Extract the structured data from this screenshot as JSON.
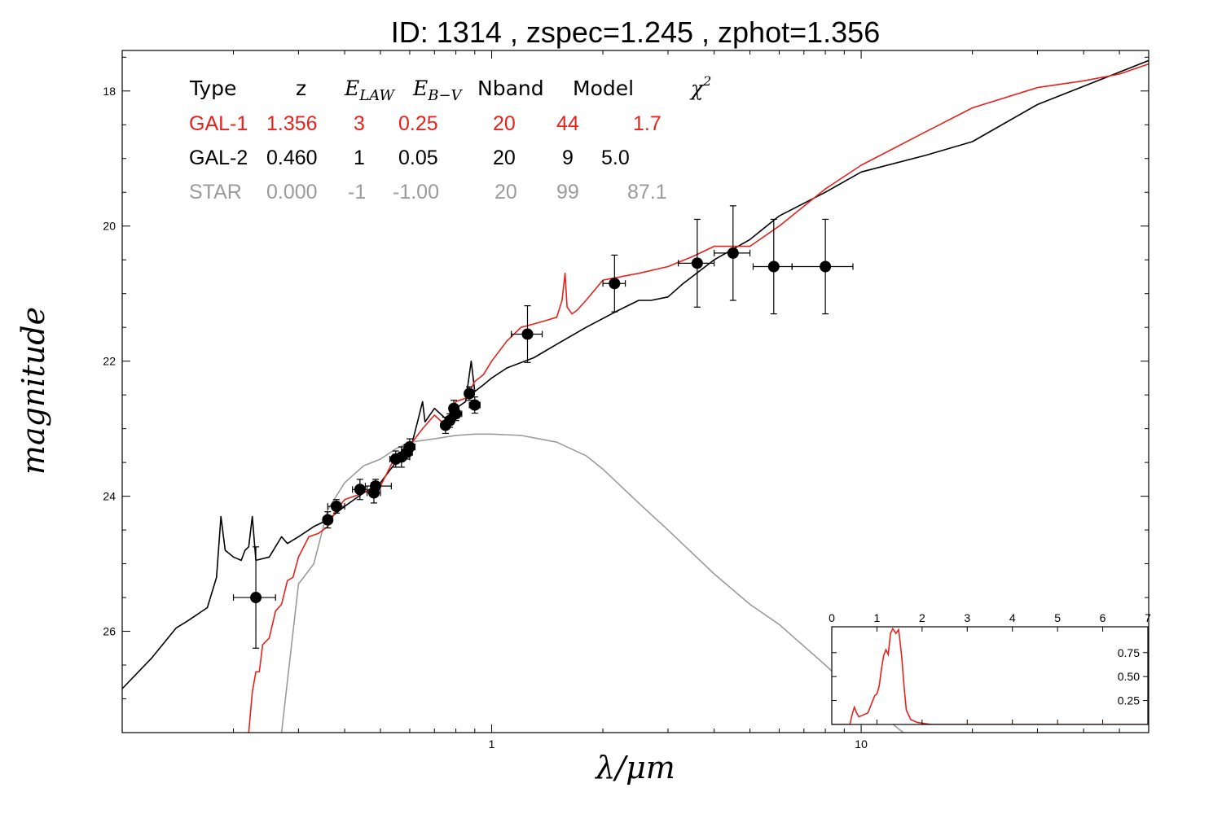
{
  "title": "ID:  1314  , zspec=1.245 , zphot=1.356",
  "axes": {
    "xlabel": "λ/μm",
    "ylabel": "magnitude",
    "xscale": "log",
    "xlim": [
      0.1,
      60
    ],
    "ylim": [
      27.5,
      17.4
    ],
    "y_inverted": true,
    "xticks": [
      1,
      10
    ],
    "yticks": [
      18,
      20,
      22,
      24,
      26
    ],
    "grid": false
  },
  "legend_table": {
    "headers": [
      "Type",
      "z",
      "E_LAW",
      "E_B−V",
      "Nband",
      "Model",
      "χ²"
    ],
    "rows": [
      {
        "color": "#e8211b",
        "cells": [
          "GAL-1",
          "1.356",
          "3",
          "0.25",
          "20",
          "44",
          "1.7"
        ]
      },
      {
        "color": "#000000",
        "cells": [
          "GAL-2",
          "0.460",
          "1",
          "0.05",
          "20",
          "9",
          "5.0"
        ]
      },
      {
        "color": "#9b9b9b",
        "cells": [
          "STAR",
          "0.000",
          "-1",
          "-1.00",
          "20",
          "99",
          "87.1"
        ]
      }
    ]
  },
  "chart_data": {
    "type": "scatter",
    "title": "ID:  1314  , zspec=1.245 , zphot=1.356",
    "xlabel": "λ/μm",
    "ylabel": "magnitude",
    "points": [
      {
        "x": 0.23,
        "y": 25.5,
        "xerr_lo": 0.03,
        "xerr_hi": 0.03,
        "yerr": 0.75
      },
      {
        "x": 0.36,
        "y": 24.35,
        "xerr_lo": 0.01,
        "xerr_hi": 0.01,
        "yerr": 0.12
      },
      {
        "x": 0.38,
        "y": 24.15,
        "xerr_lo": 0.02,
        "xerr_hi": 0.02,
        "yerr": 0.1
      },
      {
        "x": 0.44,
        "y": 23.9,
        "xerr_lo": 0.02,
        "xerr_hi": 0.02,
        "yerr": 0.15
      },
      {
        "x": 0.48,
        "y": 23.95,
        "xerr_lo": 0.02,
        "xerr_hi": 0.02,
        "yerr": 0.15
      },
      {
        "x": 0.485,
        "y": 23.85,
        "xerr_lo": 0.03,
        "xerr_hi": 0.05,
        "yerr": 0.1
      },
      {
        "x": 0.55,
        "y": 23.45,
        "xerr_lo": 0.02,
        "xerr_hi": 0.02,
        "yerr": 0.12
      },
      {
        "x": 0.57,
        "y": 23.42,
        "xerr_lo": 0.03,
        "xerr_hi": 0.03,
        "yerr": 0.15
      },
      {
        "x": 0.59,
        "y": 23.35,
        "xerr_lo": 0.02,
        "xerr_hi": 0.02,
        "yerr": 0.1
      },
      {
        "x": 0.6,
        "y": 23.27,
        "xerr_lo": 0.02,
        "xerr_hi": 0.02,
        "yerr": 0.12
      },
      {
        "x": 0.75,
        "y": 22.95,
        "xerr_lo": 0.02,
        "xerr_hi": 0.02,
        "yerr": 0.12
      },
      {
        "x": 0.77,
        "y": 22.88,
        "xerr_lo": 0.02,
        "xerr_hi": 0.02,
        "yerr": 0.1
      },
      {
        "x": 0.79,
        "y": 22.7,
        "xerr_lo": 0.02,
        "xerr_hi": 0.02,
        "yerr": 0.12
      },
      {
        "x": 0.8,
        "y": 22.78,
        "xerr_lo": 0.03,
        "xerr_hi": 0.03,
        "yerr": 0.1
      },
      {
        "x": 0.87,
        "y": 22.48,
        "xerr_lo": 0.02,
        "xerr_hi": 0.02,
        "yerr": 0.1
      },
      {
        "x": 0.9,
        "y": 22.65,
        "xerr_lo": 0.03,
        "xerr_hi": 0.03,
        "yerr": 0.12
      },
      {
        "x": 1.25,
        "y": 21.6,
        "xerr_lo": 0.12,
        "xerr_hi": 0.12,
        "yerr": 0.42
      },
      {
        "x": 2.15,
        "y": 20.85,
        "xerr_lo": 0.15,
        "xerr_hi": 0.15,
        "yerr": 0.42
      },
      {
        "x": 3.6,
        "y": 20.55,
        "xerr_lo": 0.4,
        "xerr_hi": 0.4,
        "yerr": 0.65
      },
      {
        "x": 4.5,
        "y": 20.4,
        "xerr_lo": 0.5,
        "xerr_hi": 0.5,
        "yerr": 0.7
      },
      {
        "x": 5.8,
        "y": 20.6,
        "xerr_lo": 0.7,
        "xerr_hi": 0.7,
        "yerr": 0.7
      },
      {
        "x": 8.0,
        "y": 20.6,
        "xerr_lo": 1.5,
        "xerr_hi": 1.5,
        "yerr": 0.7
      }
    ],
    "series": [
      {
        "name": "GAL-1",
        "color": "#e8211b",
        "x": [
          0.22,
          0.225,
          0.23,
          0.235,
          0.24,
          0.25,
          0.26,
          0.27,
          0.28,
          0.29,
          0.3,
          0.32,
          0.34,
          0.36,
          0.38,
          0.4,
          0.45,
          0.5,
          0.55,
          0.6,
          0.65,
          0.7,
          0.75,
          0.8,
          0.85,
          0.9,
          0.95,
          1.0,
          1.1,
          1.2,
          1.3,
          1.4,
          1.5,
          1.55,
          1.58,
          1.6,
          1.65,
          1.7,
          1.8,
          2.0,
          2.5,
          3.0,
          3.5,
          4.0,
          5.0,
          6.0,
          8.0,
          10.0,
          15.0,
          20.0,
          30.0,
          40.0,
          50.0,
          60.0
        ],
        "y": [
          27.5,
          26.9,
          26.6,
          26.6,
          26.2,
          26.1,
          25.7,
          25.6,
          25.25,
          25.2,
          24.9,
          24.6,
          24.55,
          24.45,
          24.2,
          24.05,
          23.95,
          23.85,
          23.4,
          23.25,
          23.0,
          22.8,
          22.95,
          22.6,
          22.55,
          22.3,
          22.2,
          22.0,
          21.7,
          21.5,
          21.45,
          21.4,
          21.35,
          21.1,
          20.7,
          21.2,
          21.3,
          21.25,
          21.1,
          20.8,
          20.7,
          20.6,
          20.45,
          20.3,
          20.3,
          20.0,
          19.45,
          19.1,
          18.6,
          18.25,
          17.95,
          17.85,
          17.75,
          17.6
        ]
      },
      {
        "name": "GAL-2",
        "color": "#000000",
        "x": [
          0.1,
          0.12,
          0.14,
          0.15,
          0.17,
          0.18,
          0.185,
          0.19,
          0.2,
          0.21,
          0.215,
          0.22,
          0.225,
          0.23,
          0.25,
          0.27,
          0.28,
          0.3,
          0.33,
          0.36,
          0.4,
          0.45,
          0.5,
          0.55,
          0.6,
          0.63,
          0.65,
          0.66,
          0.7,
          0.75,
          0.8,
          0.85,
          0.88,
          0.9,
          0.95,
          1.0,
          1.1,
          1.3,
          1.5,
          1.8,
          2.2,
          2.5,
          2.7,
          3.0,
          3.3,
          4.0,
          5.0,
          6.0,
          8.0,
          10.0,
          15.0,
          20.0,
          30.0,
          60.0
        ],
        "y": [
          26.85,
          26.4,
          25.95,
          25.85,
          25.65,
          25.2,
          24.3,
          24.8,
          24.9,
          24.95,
          24.8,
          24.75,
          24.3,
          24.95,
          24.9,
          24.6,
          24.7,
          24.6,
          24.45,
          24.35,
          24.15,
          23.95,
          23.8,
          23.5,
          23.35,
          22.9,
          22.6,
          22.9,
          22.7,
          22.85,
          22.7,
          22.6,
          22.0,
          22.45,
          22.35,
          22.25,
          22.1,
          21.95,
          21.75,
          21.5,
          21.25,
          21.1,
          21.1,
          21.05,
          20.85,
          20.5,
          20.2,
          19.85,
          19.5,
          19.2,
          18.95,
          18.75,
          18.2,
          17.55
        ]
      },
      {
        "name": "STAR",
        "color": "#9b9b9b",
        "x": [
          0.27,
          0.3,
          0.33,
          0.36,
          0.4,
          0.45,
          0.5,
          0.55,
          0.6,
          0.7,
          0.8,
          0.9,
          1.0,
          1.2,
          1.5,
          1.8,
          2.0,
          2.5,
          3.0,
          4.0,
          5.0,
          6.0,
          8.0,
          10.0,
          13.0
        ],
        "y": [
          27.5,
          25.3,
          25.0,
          24.2,
          23.8,
          23.55,
          23.45,
          23.3,
          23.2,
          23.15,
          23.1,
          23.08,
          23.08,
          23.1,
          23.2,
          23.4,
          23.6,
          24.1,
          24.5,
          25.15,
          25.6,
          25.9,
          26.5,
          27.0,
          27.5
        ]
      }
    ],
    "inset": {
      "type": "line",
      "xlim": [
        0,
        7
      ],
      "ylim": [
        0,
        1.02
      ],
      "xticks": [
        0,
        1,
        2,
        3,
        4,
        5,
        6,
        7
      ],
      "yticks": [
        0.25,
        0.5,
        0.75
      ],
      "yticklabels": [
        "0.25",
        "0.50",
        "0.75"
      ],
      "color": "#e8211b",
      "x": [
        0,
        0.4,
        0.45,
        0.5,
        0.55,
        0.6,
        0.7,
        0.8,
        0.95,
        1.0,
        1.05,
        1.1,
        1.15,
        1.2,
        1.25,
        1.3,
        1.35,
        1.38,
        1.42,
        1.48,
        1.5,
        1.55,
        1.6,
        1.65,
        1.75,
        1.9,
        2.2,
        7.0
      ],
      "y": [
        0,
        0,
        0.1,
        0.18,
        0.12,
        0.08,
        0.1,
        0.12,
        0.3,
        0.32,
        0.4,
        0.58,
        0.72,
        0.78,
        0.73,
        0.95,
        1.0,
        0.98,
        0.95,
        0.99,
        0.92,
        0.7,
        0.4,
        0.15,
        0.05,
        0.02,
        0,
        0
      ]
    }
  }
}
